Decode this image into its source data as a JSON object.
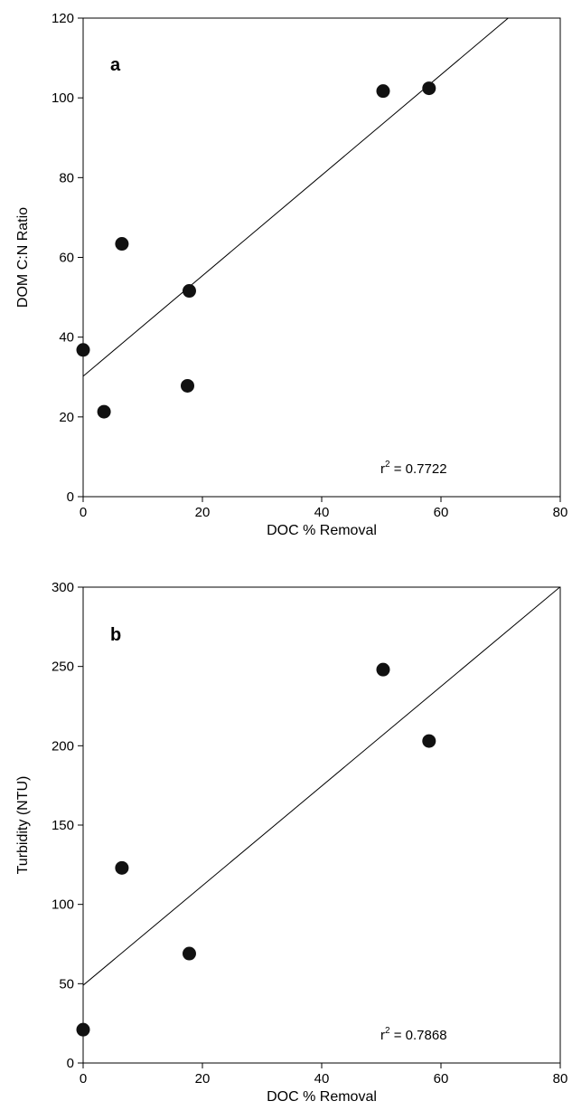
{
  "chart_data": [
    {
      "type": "scatter",
      "panel_label": "a",
      "xlabel": "DOC % Removal",
      "ylabel": "DOM C:N Ratio",
      "xlim": [
        0,
        80
      ],
      "ylim": [
        0,
        120
      ],
      "xticks": [
        0,
        20,
        40,
        60,
        80
      ],
      "yticks": [
        0,
        20,
        40,
        60,
        80,
        100,
        120
      ],
      "points": [
        {
          "x": 0,
          "y": 36.8
        },
        {
          "x": 3.5,
          "y": 21.3
        },
        {
          "x": 6.5,
          "y": 63.4
        },
        {
          "x": 17.5,
          "y": 27.8
        },
        {
          "x": 17.8,
          "y": 51.6
        },
        {
          "x": 50.3,
          "y": 101.7
        },
        {
          "x": 58.0,
          "y": 102.4
        }
      ],
      "fit_line": {
        "intercept": 30.2,
        "slope": 1.26
      },
      "annotation": {
        "prefix": "r",
        "sup": "2",
        "text": " = 0.7722"
      },
      "grid": false
    },
    {
      "type": "scatter",
      "panel_label": "b",
      "xlabel": "DOC % Removal",
      "ylabel": "Turbidity (NTU)",
      "xlim": [
        0,
        80
      ],
      "ylim": [
        0,
        300
      ],
      "xticks": [
        0,
        20,
        40,
        60,
        80
      ],
      "yticks": [
        0,
        50,
        100,
        150,
        200,
        250,
        300
      ],
      "points": [
        {
          "x": 0,
          "y": 21
        },
        {
          "x": 6.5,
          "y": 123
        },
        {
          "x": 17.8,
          "y": 69
        },
        {
          "x": 50.3,
          "y": 248
        },
        {
          "x": 58.0,
          "y": 203
        }
      ],
      "fit_line": {
        "intercept": 49,
        "slope": 3.14
      },
      "annotation": {
        "prefix": "r",
        "sup": "2",
        "text": " = 0.7868"
      },
      "grid": false
    }
  ]
}
